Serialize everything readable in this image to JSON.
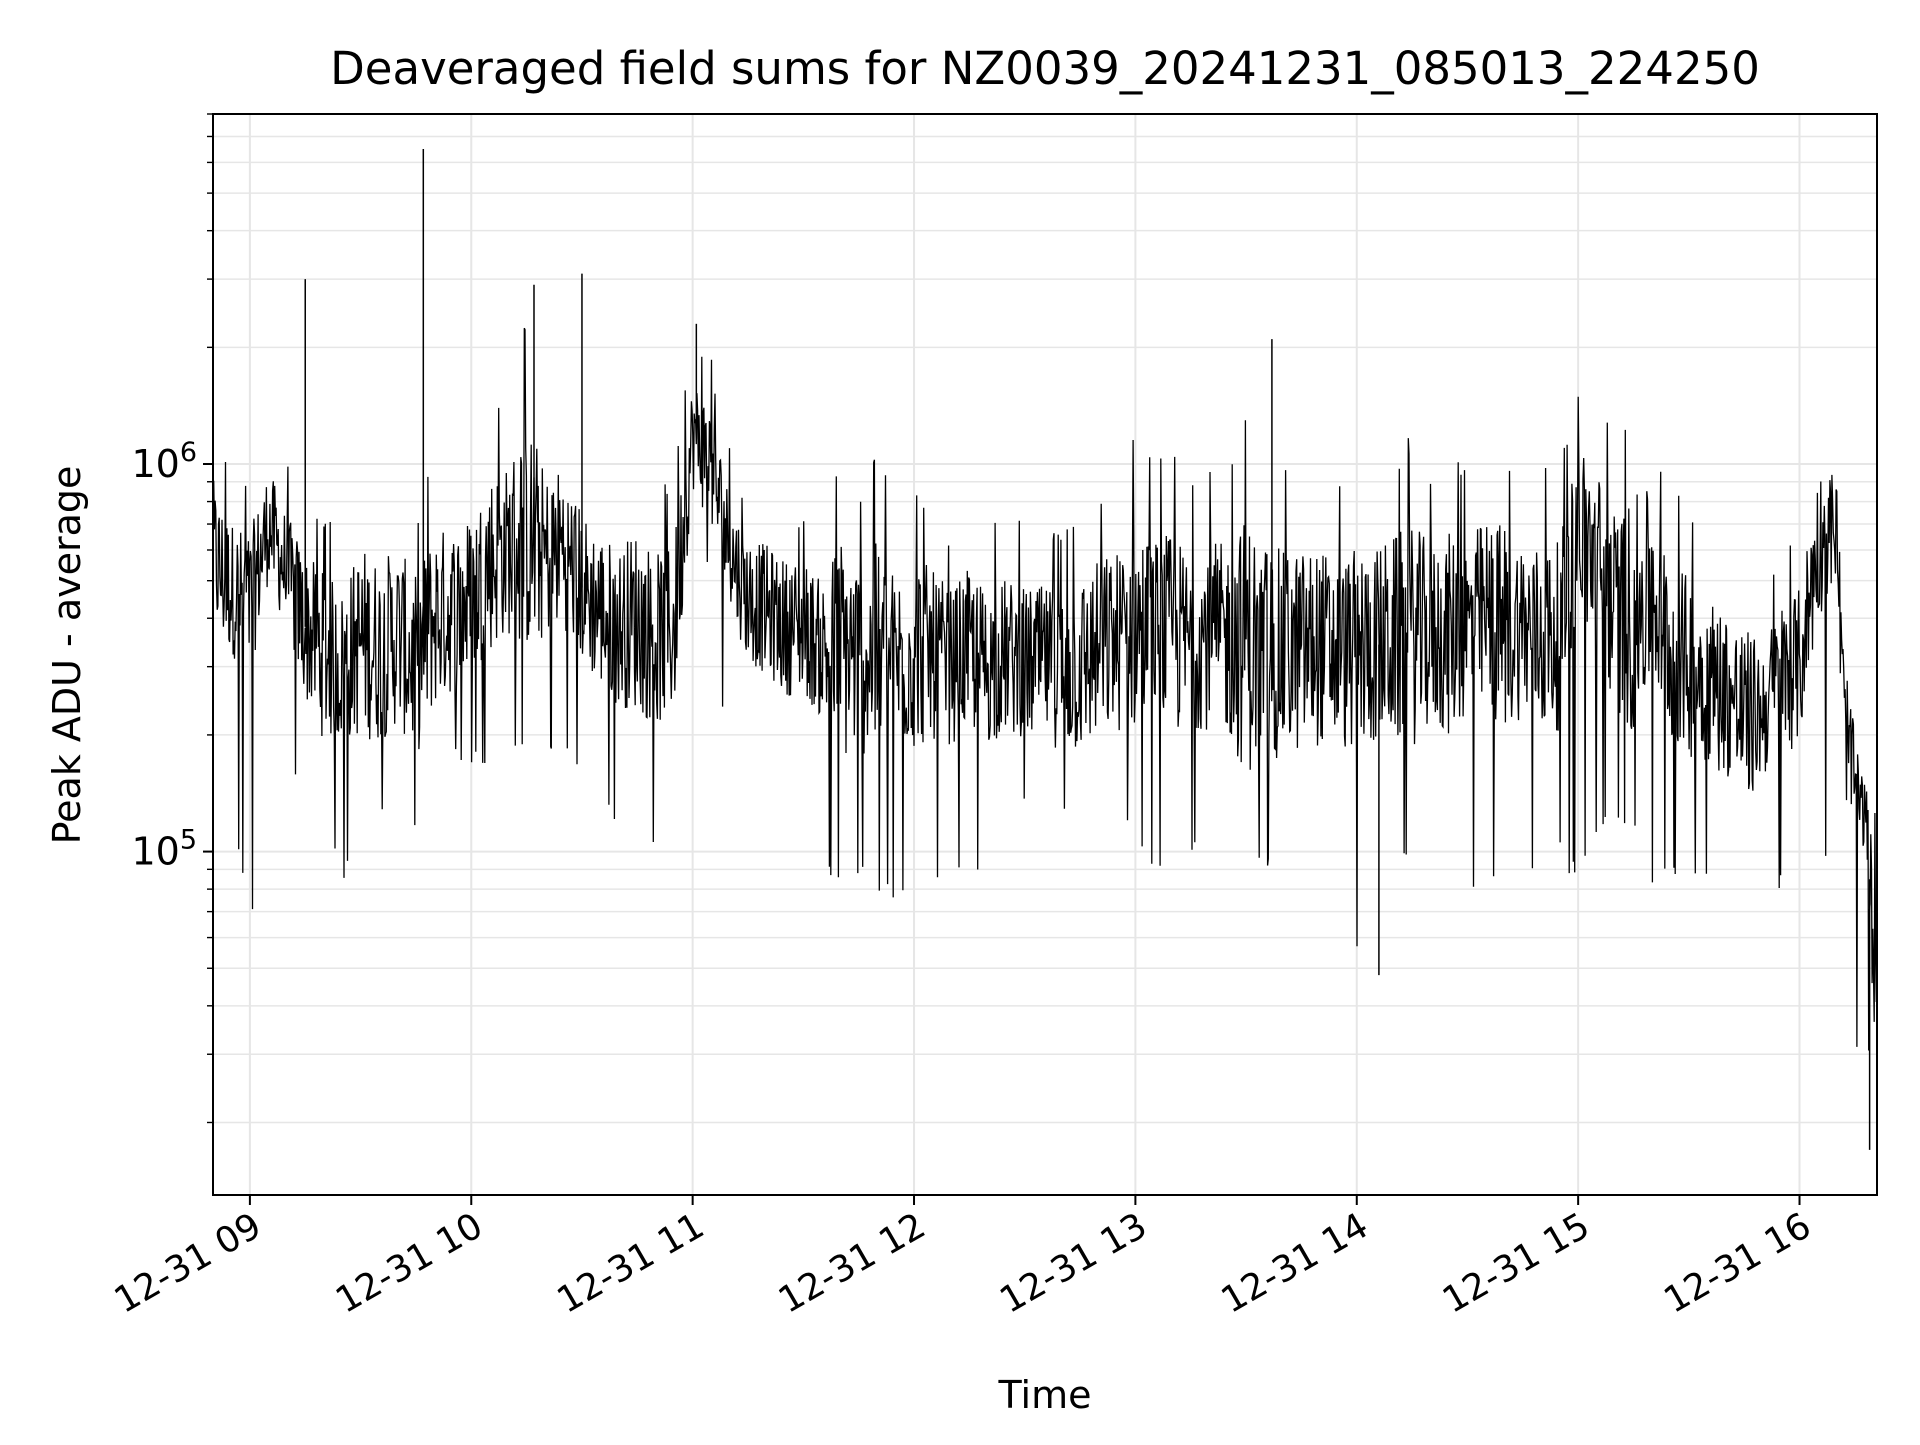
{
  "chart_data": {
    "type": "line",
    "title": "Deaveraged field sums for NZ0039_20241231_085013_224250",
    "xlabel": "Time",
    "ylabel": "Peak ADU - average",
    "y_scale": "log",
    "ylim": [
      13000,
      8000000
    ],
    "xlim": [
      "2024-12-31 08:50",
      "2024-12-31 16:21"
    ],
    "x_ticks": [
      {
        "label": "12-31 09",
        "value": "2024-12-31 09:00"
      },
      {
        "label": "12-31 10",
        "value": "2024-12-31 10:00"
      },
      {
        "label": "12-31 11",
        "value": "2024-12-31 11:00"
      },
      {
        "label": "12-31 12",
        "value": "2024-12-31 12:00"
      },
      {
        "label": "12-31 13",
        "value": "2024-12-31 13:00"
      },
      {
        "label": "12-31 14",
        "value": "2024-12-31 14:00"
      },
      {
        "label": "12-31 15",
        "value": "2024-12-31 15:00"
      },
      {
        "label": "12-31 16",
        "value": "2024-12-31 16:00"
      }
    ],
    "y_ticks": [
      {
        "base": "10",
        "exp": "5",
        "value": 100000
      },
      {
        "base": "10",
        "exp": "6",
        "value": 1000000
      }
    ],
    "grid": true,
    "line_color": "#000000",
    "grid_color": "#e6e6e6",
    "series": [
      {
        "x": [
          "2024-12-31 08:50",
          "2024-12-31 08:52",
          "2024-12-31 08:55",
          "2024-12-31 09:00",
          "2024-12-31 09:05",
          "2024-12-31 09:10",
          "2024-12-31 09:15",
          "2024-12-31 09:20",
          "2024-12-31 09:25",
          "2024-12-31 09:30",
          "2024-12-31 09:35",
          "2024-12-31 09:40",
          "2024-12-31 09:45",
          "2024-12-31 09:50",
          "2024-12-31 09:55",
          "2024-12-31 10:00",
          "2024-12-31 10:05",
          "2024-12-31 10:10",
          "2024-12-31 10:15",
          "2024-12-31 10:20",
          "2024-12-31 10:25",
          "2024-12-31 10:30",
          "2024-12-31 10:35",
          "2024-12-31 10:40",
          "2024-12-31 10:45",
          "2024-12-31 10:50",
          "2024-12-31 10:55",
          "2024-12-31 11:00",
          "2024-12-31 11:05",
          "2024-12-31 11:10",
          "2024-12-31 11:15",
          "2024-12-31 11:20",
          "2024-12-31 11:25",
          "2024-12-31 11:30",
          "2024-12-31 11:35",
          "2024-12-31 11:40",
          "2024-12-31 11:45",
          "2024-12-31 11:50",
          "2024-12-31 11:55",
          "2024-12-31 12:00",
          "2024-12-31 12:05",
          "2024-12-31 12:10",
          "2024-12-31 12:15",
          "2024-12-31 12:20",
          "2024-12-31 12:25",
          "2024-12-31 12:30",
          "2024-12-31 12:35",
          "2024-12-31 12:40",
          "2024-12-31 12:45",
          "2024-12-31 12:50",
          "2024-12-31 12:55",
          "2024-12-31 13:00",
          "2024-12-31 13:05",
          "2024-12-31 13:10",
          "2024-12-31 13:15",
          "2024-12-31 13:20",
          "2024-12-31 13:25",
          "2024-12-31 13:30",
          "2024-12-31 13:35",
          "2024-12-31 13:40",
          "2024-12-31 13:45",
          "2024-12-31 13:50",
          "2024-12-31 13:55",
          "2024-12-31 14:00",
          "2024-12-31 14:05",
          "2024-12-31 14:10",
          "2024-12-31 14:15",
          "2024-12-31 14:20",
          "2024-12-31 14:25",
          "2024-12-31 14:30",
          "2024-12-31 14:35",
          "2024-12-31 14:40",
          "2024-12-31 14:45",
          "2024-12-31 14:50",
          "2024-12-31 14:55",
          "2024-12-31 15:00",
          "2024-12-31 15:05",
          "2024-12-31 15:10",
          "2024-12-31 15:15",
          "2024-12-31 15:20",
          "2024-12-31 15:25",
          "2024-12-31 15:30",
          "2024-12-31 15:35",
          "2024-12-31 15:40",
          "2024-12-31 15:45",
          "2024-12-31 15:50",
          "2024-12-31 15:55",
          "2024-12-31 16:00",
          "2024-12-31 16:05",
          "2024-12-31 16:10",
          "2024-12-31 16:12",
          "2024-12-31 16:15",
          "2024-12-31 16:18",
          "2024-12-31 16:20"
        ],
        "y": [
          600000,
          520000,
          480000,
          430000,
          700000,
          520000,
          380000,
          320000,
          300000,
          350000,
          330000,
          360000,
          300000,
          400000,
          420000,
          450000,
          560000,
          600000,
          640000,
          580000,
          620000,
          480000,
          420000,
          380000,
          400000,
          350000,
          380000,
          1200000,
          1000000,
          600000,
          450000,
          420000,
          380000,
          380000,
          330000,
          330000,
          320000,
          320000,
          310000,
          330000,
          320000,
          300000,
          330000,
          300000,
          320000,
          300000,
          310000,
          290000,
          300000,
          330000,
          350000,
          380000,
          380000,
          360000,
          350000,
          360000,
          350000,
          340000,
          330000,
          320000,
          330000,
          340000,
          320000,
          330000,
          340000,
          350000,
          360000,
          360000,
          360000,
          380000,
          400000,
          380000,
          380000,
          350000,
          360000,
          700000,
          550000,
          420000,
          400000,
          480000,
          330000,
          300000,
          280000,
          260000,
          220000,
          230000,
          280000,
          300000,
          620000,
          700000,
          220000,
          150000,
          120000,
          60000
        ],
        "envelope_high": [
          1300000,
          1200000,
          1000000,
          950000,
          1300000,
          1000000,
          850000,
          800000,
          700000,
          1000000,
          900000,
          950000,
          800000,
          1200000,
          1200000,
          1100000,
          1500000,
          1500000,
          2800000,
          1400000,
          1500000,
          1100000,
          1000000,
          900000,
          1100000,
          900000,
          1000000,
          2200000,
          2000000,
          1100000,
          900000,
          850000,
          800000,
          800000,
          700000,
          1200000,
          900000,
          1100000,
          800000,
          1000000,
          800000,
          700000,
          800000,
          700000,
          750000,
          700000,
          700000,
          700000,
          800000,
          900000,
          950000,
          1200000,
          1000000,
          1100000,
          900000,
          1000000,
          1000000,
          1400000,
          1100000,
          1000000,
          1000000,
          1000000,
          900000,
          1000000,
          1000000,
          1100000,
          1200000,
          1000000,
          1100000,
          1000000,
          1200000,
          1200000,
          1000000,
          1000000,
          1000000,
          1700000,
          1600000,
          1200000,
          1500000,
          1400000,
          900000,
          800000,
          700000,
          650000,
          600000,
          480000,
          650000,
          700000,
          1400000,
          1300000,
          500000,
          250000,
          170000,
          150000
        ],
        "envelope_low": [
          55000,
          150000,
          120000,
          60000,
          130000,
          150000,
          130000,
          100000,
          80000,
          120000,
          120000,
          120000,
          110000,
          150000,
          170000,
          160000,
          170000,
          180000,
          190000,
          170000,
          160000,
          150000,
          140000,
          100000,
          120000,
          100000,
          110000,
          650000,
          500000,
          150000,
          120000,
          100000,
          80000,
          70000,
          80000,
          85000,
          80000,
          70000,
          75000,
          65000,
          75000,
          90000,
          90000,
          65000,
          110000,
          120000,
          110000,
          110000,
          110000,
          90000,
          110000,
          110000,
          80000,
          95000,
          100000,
          90000,
          90000,
          85000,
          80000,
          90000,
          70000,
          75000,
          80000,
          50000,
          90000,
          100000,
          90000,
          90000,
          85000,
          80000,
          70000,
          90000,
          90000,
          80000,
          90000,
          85000,
          100000,
          120000,
          110000,
          80000,
          80000,
          80000,
          80000,
          75000,
          80000,
          75000,
          80000,
          130000,
          170000,
          45000,
          30000,
          28000,
          40000,
          17000
        ]
      }
    ]
  }
}
